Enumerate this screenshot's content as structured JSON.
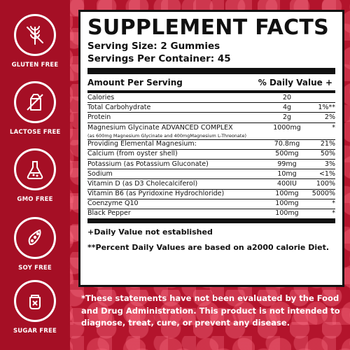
{
  "badges": [
    {
      "label": "GLUTEN FREE",
      "icon": "wheat-crossed-icon"
    },
    {
      "label": "LACTOSE FREE",
      "icon": "milk-carton-crossed-icon"
    },
    {
      "label": "GMO FREE",
      "icon": "flask-icon"
    },
    {
      "label": "SOY FREE",
      "icon": "soy-pod-icon"
    },
    {
      "label": "SUGAR FREE",
      "icon": "sugar-jar-crossed-icon"
    }
  ],
  "panel": {
    "title": "SUPPLEMENT FACTS",
    "serving_size": "Serving Size: 2 Gummies",
    "servings_per_container": "Servings Per Container: 45",
    "header_amount": "Amount Per Serving",
    "header_dv": "% Daily Value +",
    "rows": [
      {
        "name": "Calories",
        "amount": "20",
        "dv": ""
      },
      {
        "name": "Total Carbohydrate",
        "amount": "4g",
        "dv": "1%**"
      },
      {
        "name": "Protein",
        "amount": "2g",
        "dv": "2%"
      },
      {
        "name": "Magnesium Glycinate ADVANCED COMPLEX",
        "sub": "(as 600mg Magnesium Glycinate and 400mgMagnesium L-Threonate)",
        "amount": "1000mg",
        "dv": "*"
      },
      {
        "name": "Providing Elemental Magnesium:",
        "amount": "70.8mg",
        "dv": "21%"
      },
      {
        "name": "Calcium (from oyster shell)",
        "amount": "500mg",
        "dv": "50%"
      },
      {
        "name": "Potassium (as Potassium Gluconate)",
        "amount": "99mg",
        "dv": "3%"
      },
      {
        "name": "Sodium",
        "amount": "10mg",
        "dv": "<1%"
      },
      {
        "name": "Vitamin D (as D3 Cholecalciferol)",
        "amount": "400IU",
        "dv": "100%"
      },
      {
        "name": "Vitamin B6 (as Pyridoxine Hydrochloride)",
        "amount": "100mg",
        "dv": "5000%"
      },
      {
        "name": "Coenzyme Q10",
        "amount": "100mg",
        "dv": "*"
      },
      {
        "name": "Black Pepper",
        "amount": "100mg",
        "dv": "*"
      }
    ],
    "footnote_1": "+Daily Value not established",
    "footnote_2": "**Percent Daily Values are based on a2000 calorie Diet."
  },
  "disclaimer": "*These statements have not been evaluated by the Food and Drug Administration. This product is not intended to diagnose, treat, cure, or prevent any disease.",
  "colors": {
    "background": "#b3142c",
    "panel": "#ffffff",
    "ink": "#111111"
  }
}
